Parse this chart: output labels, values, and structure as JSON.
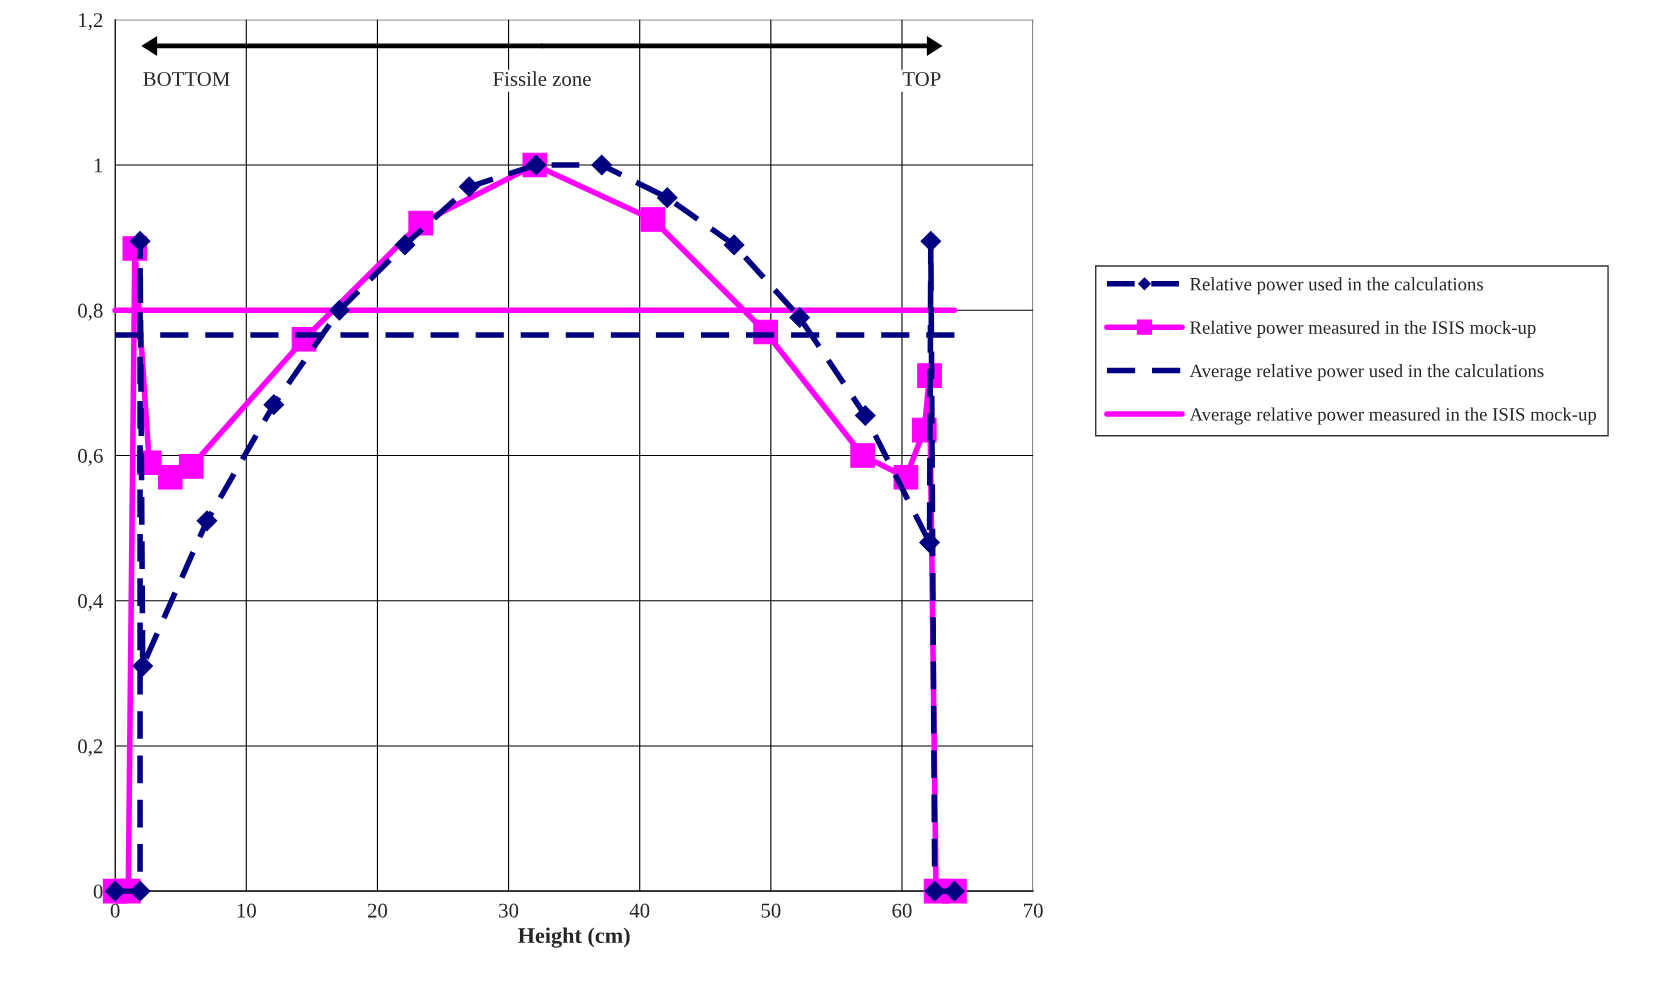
{
  "chart_data": {
    "type": "line",
    "xlabel": "Height (cm)",
    "xlim": [
      0,
      70
    ],
    "xticks": [
      0,
      10,
      20,
      30,
      40,
      50,
      60,
      70
    ],
    "ylim": [
      0,
      1.2
    ],
    "yticks": [
      0,
      {
        "value": 0.2,
        "label": "0,2"
      },
      {
        "value": 0.4,
        "label": "0,4"
      },
      {
        "value": 0.6,
        "label": "0,6"
      },
      {
        "value": 0.8,
        "label": "0,8"
      },
      1,
      {
        "value": 1.2,
        "label": "1,2"
      }
    ],
    "grid": true,
    "legend": "right",
    "series": [
      {
        "name": "Relative power used in the calculations",
        "color": "#000080",
        "marker": "diamond",
        "line_style": "dashed",
        "x": [
          0,
          1.9,
          1.9,
          2.1,
          7,
          12.1,
          17.1,
          22.1,
          27,
          32.1,
          37.1,
          42.1,
          47.2,
          52.2,
          57.2,
          62.1,
          62.2,
          62.5,
          64
        ],
        "values": [
          0,
          0,
          0.895,
          0.31,
          0.51,
          0.67,
          0.8,
          0.89,
          0.97,
          1.0,
          1.0,
          0.955,
          0.89,
          0.79,
          0.655,
          0.48,
          0.895,
          0,
          0
        ]
      },
      {
        "name": "Relative power measured in the ISIS mock-up",
        "color": "#ff00ff",
        "marker": "square",
        "line_style": "solid",
        "x": [
          0,
          1,
          1.5,
          2.6,
          4.2,
          5.8,
          14.4,
          23.3,
          32,
          41,
          49.6,
          57,
          60.3,
          61.7,
          62.1,
          62.6,
          64
        ],
        "values": [
          0,
          0,
          0.885,
          0.59,
          0.57,
          0.585,
          0.76,
          0.92,
          1.0,
          0.925,
          0.77,
          0.6,
          0.57,
          0.635,
          0.71,
          0,
          0
        ]
      },
      {
        "name": "Average relative power used in the calculations",
        "color": "#000080",
        "marker": "none",
        "line_style": "dashed",
        "x": [
          0,
          64
        ],
        "values": [
          0.766,
          0.766
        ]
      },
      {
        "name": "Average relative power measured in the ISIS mock-up",
        "color": "#ff00ff",
        "marker": "none",
        "line_style": "solid",
        "x": [
          0,
          64
        ],
        "values": [
          0.8,
          0.8
        ]
      }
    ],
    "annotations": [
      "BOTTOM",
      "Fissile zone",
      "TOP"
    ]
  }
}
